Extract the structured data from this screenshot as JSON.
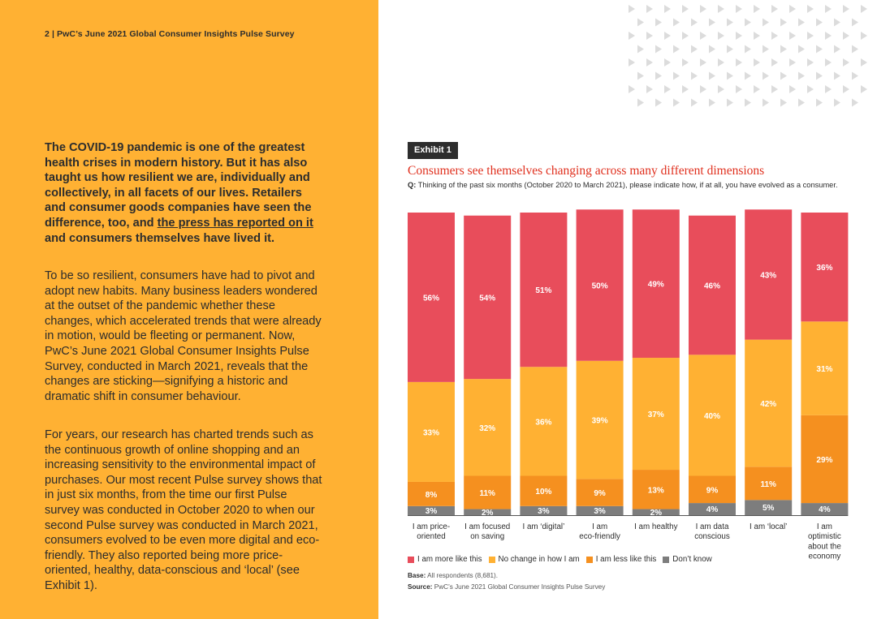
{
  "header": {
    "page_label": "2  |  PwC’s June 2021 Global Consumer Insights Pulse Survey"
  },
  "lead": {
    "text_before": "The COVID-19 pandemic is one of the greatest health crises in modern history. But it has also taught us how resilient we are, individually and collectively, in all facets of our lives. Retailers and consumer goods companies have seen the difference, too, and ",
    "link_text": "the press has reported on it",
    "text_after": " and consumers themselves have lived it."
  },
  "paragraphs": {
    "p1": "To be so resilient, consumers have had to pivot and adopt new habits. Many business leaders wondered at the outset of the pandemic whether these changes, which accelerated trends that were already in motion, would be fleeting or permanent. Now, PwC’s June 2021 Global Consumer Insights Pulse Survey, conducted in March 2021, reveals that the changes are sticking—signifying a historic and dramatic shift in consumer behaviour.",
    "p2": "For years, our research has charted trends such as the continuous growth of online shopping and an increasing sensitivity to the environmental impact of purchases. Our most recent Pulse survey shows that in just six months, from the time our first Pulse survey was conducted in October 2020 to when our second Pulse survey was conducted in March 2021, consumers evolved to be even more digital and eco-friendly. They also reported being more price-oriented, healthy, data-conscious and ‘local’ (see Exhibit 1)."
  },
  "exhibit": {
    "tag": "Exhibit 1",
    "question_label": "Q:",
    "question_text": " Thinking of the past six months (October 2020 to March 2021), please indicate how, if at all, you have evolved as a consumer.",
    "base_label": "Base:",
    "base_text": " All respondents (8,681).",
    "source_label": "Source:",
    "source_text": " PwC’s June 2021 Global Consumer Insights Pulse Survey"
  },
  "colors": {
    "more": "#E84D5B",
    "nochange": "#FFB133",
    "less": "#F5901F",
    "dontknow": "#7D7D7D"
  },
  "chart_data": {
    "type": "bar",
    "stacked": true,
    "title": "Consumers see themselves changing across many different dimensions",
    "categories": [
      [
        "I am price-",
        "oriented"
      ],
      [
        "I am focused",
        "on saving"
      ],
      [
        "I am ‘digital’"
      ],
      [
        "I am",
        "eco-friendly"
      ],
      [
        "I am healthy"
      ],
      [
        "I am data",
        "conscious"
      ],
      [
        "I am ‘local’"
      ],
      [
        "I am",
        "optimistic",
        "about the",
        "economy"
      ]
    ],
    "series": [
      {
        "name": "Don’t know",
        "color_key": "dontknow",
        "values": [
          3,
          2,
          3,
          3,
          2,
          4,
          5,
          4
        ]
      },
      {
        "name": "I am less like this",
        "color_key": "less",
        "values": [
          8,
          11,
          10,
          9,
          13,
          9,
          11,
          29
        ]
      },
      {
        "name": "No change in how I am",
        "color_key": "nochange",
        "values": [
          33,
          32,
          36,
          39,
          37,
          40,
          42,
          31
        ]
      },
      {
        "name": "I am more like this",
        "color_key": "more",
        "values": [
          56,
          54,
          51,
          50,
          49,
          46,
          43,
          36
        ]
      }
    ],
    "legend_order": [
      "I am more like this",
      "No change in how I am",
      "I am less like this",
      "Don’t know"
    ],
    "ylim": [
      0,
      100
    ],
    "unit": "%"
  }
}
